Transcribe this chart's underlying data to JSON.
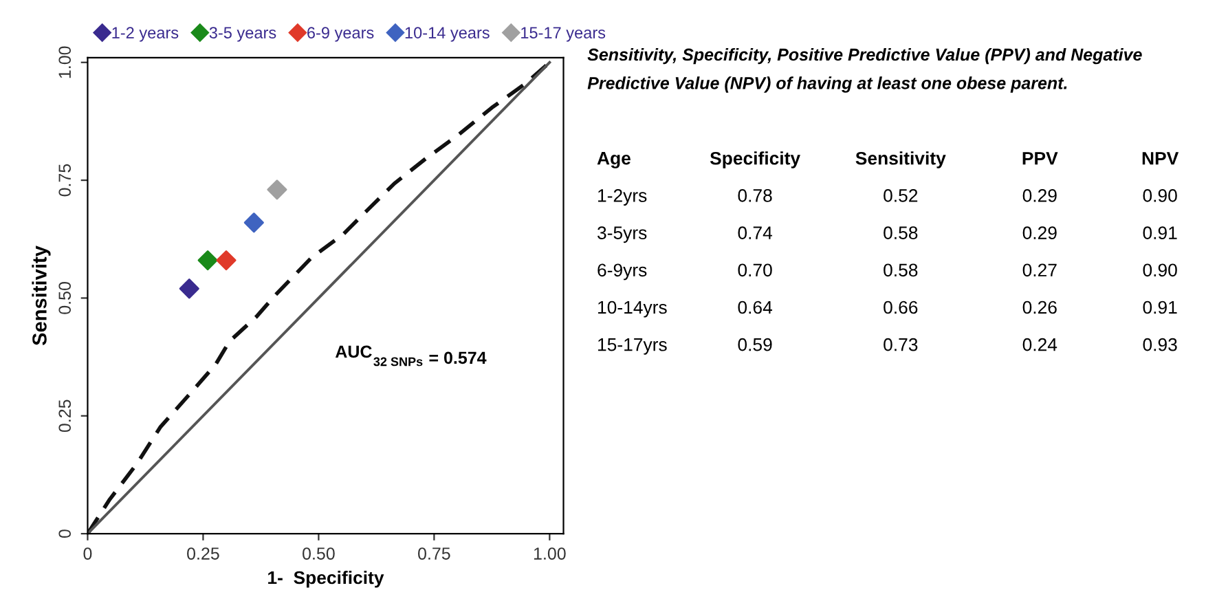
{
  "chart_data": [
    {
      "type": "scatter",
      "xlabel": "1-  Specificity",
      "ylabel": "Sensitivity",
      "xlim": [
        0,
        1.03
      ],
      "ylim": [
        0,
        1.01
      ],
      "xticks": [
        0,
        0.25,
        {
          "value": 0.5,
          "label": "0.50"
        },
        0.75,
        {
          "value": 1,
          "label": "1.00"
        }
      ],
      "yticks": [
        0,
        0.25,
        {
          "value": 0.5,
          "label": "0.50"
        },
        0.75,
        {
          "value": 1,
          "label": "1.00"
        }
      ],
      "grid": false,
      "legend": "top",
      "marker": "diamond",
      "annotations": [
        "AUC$_{32 SNPs}$ = 0.574"
      ],
      "series": [
        {
          "type": "line",
          "color": "#111111",
          "line_style": "dashed",
          "marker": "none",
          "x": [
            0,
            0.048,
            0.107,
            0.158,
            0.217,
            0.277,
            0.307,
            0.366,
            0.405,
            0.485,
            0.554,
            0.604,
            0.664,
            0.732,
            0.801,
            0.875,
            0.949,
            1
          ],
          "values": [
            0,
            0.073,
            0.149,
            0.227,
            0.292,
            0.359,
            0.408,
            0.461,
            0.505,
            0.586,
            0.636,
            0.685,
            0.743,
            0.796,
            0.845,
            0.904,
            0.956,
            1
          ]
        },
        {
          "type": "line",
          "color": "#555555",
          "line_style": "solid",
          "marker": "none",
          "x": [
            0,
            1
          ],
          "values": [
            0,
            1
          ]
        },
        {
          "name": "1-2 years",
          "color": "#3a2b8f",
          "x": [
            0.22
          ],
          "values": [
            0.52
          ]
        },
        {
          "name": "3-5 years",
          "color": "#1a8a1a",
          "x": [
            0.26
          ],
          "values": [
            0.58
          ]
        },
        {
          "name": "6-9 years",
          "color": "#e03a2a",
          "x": [
            0.3
          ],
          "values": [
            0.58
          ]
        },
        {
          "name": "10-14 years",
          "color": "#3f63c0",
          "x": [
            0.36
          ],
          "values": [
            0.66
          ]
        },
        {
          "name": "15-17 years",
          "color": "#a0a0a0",
          "x": [
            0.41
          ],
          "values": [
            0.73
          ]
        }
      ]
    },
    {
      "type": "other",
      "title": "Sensitivity, Specificity, Positive Predictive Value (PPV) and Negative Predictive Value (NPV) of having at least one obese parent.",
      "categories": [
        "Age",
        "Specificity",
        "Sensitivity",
        "PPV",
        "NPV"
      ],
      "y_categories": [
        "1-2yrs",
        "3-5yrs",
        "6-9yrs",
        "10-14yrs",
        "15-17yrs"
      ],
      "cell_labels": [
        [
          "0.78",
          "0.52",
          "0.29",
          "0.90"
        ],
        [
          "0.74",
          "0.58",
          "0.29",
          "0.91"
        ],
        [
          "0.70",
          "0.58",
          "0.27",
          "0.90"
        ],
        [
          "0.64",
          "0.66",
          "0.26",
          "0.91"
        ],
        [
          "0.59",
          "0.73",
          "0.24",
          "0.93"
        ]
      ]
    }
  ]
}
